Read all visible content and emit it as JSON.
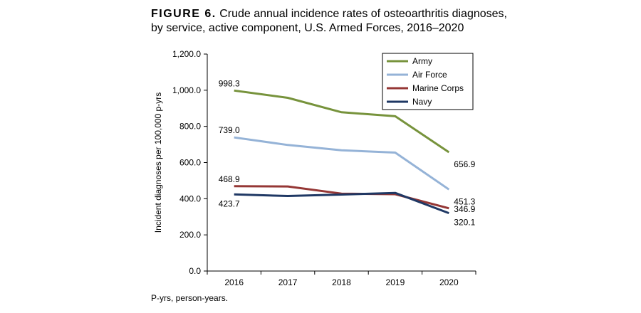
{
  "figure": {
    "label": "FIGURE 6.",
    "title_line1": "Crude annual incidence rates of osteoarthritis diagnoses,",
    "title_line2": "by service, active component, U.S. Armed Forces, 2016–2020"
  },
  "footnote": "P-yrs, person-years.",
  "chart_data": {
    "type": "line",
    "title": "Crude annual incidence rates of osteoarthritis diagnoses, by service, active component, U.S. Armed Forces, 2016–2020",
    "xlabel": "",
    "ylabel": "Incident diagnoses per 100,000 p-yrs",
    "categories": [
      "2016",
      "2017",
      "2018",
      "2019",
      "2020"
    ],
    "ylim": [
      0,
      1200
    ],
    "yticks": [
      0,
      200,
      400,
      600,
      800,
      1000,
      1200
    ],
    "ytick_labels": [
      "0.0",
      "200.0",
      "400.0",
      "600.0",
      "800.0",
      "1,000.0",
      "1,200.0"
    ],
    "legend_position": "top-right",
    "series": [
      {
        "name": "Army",
        "color": "#77933c",
        "values": [
          998.3,
          958,
          878,
          856,
          656.9
        ],
        "labels": [
          "998.3",
          null,
          null,
          null,
          "656.9"
        ]
      },
      {
        "name": "Air Force",
        "color": "#95b3d7",
        "values": [
          739.0,
          697,
          668,
          655,
          451.3
        ],
        "labels": [
          "739.0",
          null,
          null,
          null,
          "451.3"
        ]
      },
      {
        "name": "Marine Corps",
        "color": "#953735",
        "values": [
          468.9,
          468,
          428,
          425,
          346.9
        ],
        "labels": [
          "468.9",
          null,
          null,
          null,
          "346.9"
        ]
      },
      {
        "name": "Navy",
        "color": "#1f3864",
        "values": [
          423.7,
          415,
          423,
          432,
          320.1
        ],
        "labels": [
          "423.7",
          null,
          null,
          null,
          "320.1"
        ]
      }
    ]
  }
}
